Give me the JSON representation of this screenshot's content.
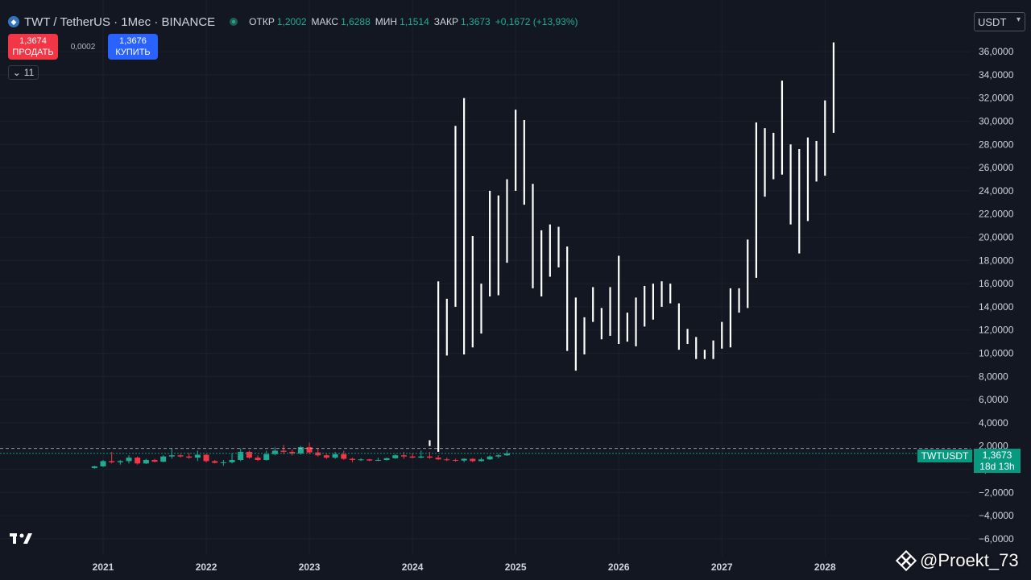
{
  "header": {
    "symbol_icon": "twt-coin-icon",
    "title": "TWT / TetherUS · 1Мес · BINANCE",
    "ohlc": [
      {
        "label": "ОТКР",
        "value": "1,2002"
      },
      {
        "label": "МАКС",
        "value": "1,6288"
      },
      {
        "label": "МИН",
        "value": "1,1514"
      },
      {
        "label": "ЗАКР",
        "value": "1,3673"
      }
    ],
    "change": "+0,1672 (+13,93%)"
  },
  "trade": {
    "sell_price": "1,3674",
    "sell_label": "ПРОДАТЬ",
    "spread": "0,0002",
    "buy_price": "1,3676",
    "buy_label": "КУПИТЬ"
  },
  "indicators_toggle": {
    "count": "11",
    "icon": "chevron-down-icon"
  },
  "currency": {
    "value": "USDT",
    "icon": "chevron-down-icon"
  },
  "price_tag": {
    "symbol": "TWTUSDT",
    "price": "1,3673",
    "countdown": "18d 13h"
  },
  "watermark": {
    "icon": "binance-logo-icon",
    "text": "@Proekt_73"
  },
  "colors": {
    "background": "#131722",
    "up": "#22ab94",
    "down": "#f23645",
    "projection": "#ffffff"
  },
  "chart_data": {
    "type": "candlestick",
    "y_axis": {
      "ticks": [
        -6,
        -4,
        -2,
        0,
        2,
        4,
        6,
        8,
        10,
        12,
        14,
        16,
        18,
        20,
        22,
        24,
        26,
        28,
        30,
        32,
        34,
        36
      ],
      "tick_labels": [
        "−6,0000",
        "−4,0000",
        "−2,0000",
        "0,0000",
        "2,0000",
        "4,0000",
        "6,0000",
        "8,0000",
        "10,0000",
        "12,0000",
        "14,0000",
        "16,0000",
        "18,0000",
        "20,0000",
        "22,0000",
        "24,0000",
        "26,0000",
        "28,0000",
        "30,0000",
        "32,0000",
        "34,0000",
        "36,0000"
      ]
    },
    "x_axis": {
      "ticks": [
        "2021",
        "2022",
        "2023",
        "2024",
        "2025",
        "2026",
        "2027",
        "2028"
      ]
    },
    "price_line": 1.8,
    "last_price": 1.3673,
    "candles": [
      {
        "x": "2020-12",
        "o": 0.1,
        "h": 0.3,
        "l": 0.05,
        "c": 0.25
      },
      {
        "x": "2021-01",
        "o": 0.25,
        "h": 0.8,
        "l": 0.2,
        "c": 0.7
      },
      {
        "x": "2021-02",
        "o": 0.7,
        "h": 1.5,
        "l": 0.5,
        "c": 0.6
      },
      {
        "x": "2021-03",
        "o": 0.6,
        "h": 0.8,
        "l": 0.4,
        "c": 0.7
      },
      {
        "x": "2021-04",
        "o": 0.7,
        "h": 1.2,
        "l": 0.5,
        "c": 1.0
      },
      {
        "x": "2021-05",
        "o": 1.0,
        "h": 1.1,
        "l": 0.4,
        "c": 0.5
      },
      {
        "x": "2021-06",
        "o": 0.5,
        "h": 0.9,
        "l": 0.45,
        "c": 0.8
      },
      {
        "x": "2021-07",
        "o": 0.8,
        "h": 0.9,
        "l": 0.6,
        "c": 0.65
      },
      {
        "x": "2021-08",
        "o": 0.65,
        "h": 1.2,
        "l": 0.6,
        "c": 1.1
      },
      {
        "x": "2021-09",
        "o": 1.1,
        "h": 1.8,
        "l": 0.9,
        "c": 1.2
      },
      {
        "x": "2021-10",
        "o": 1.2,
        "h": 1.3,
        "l": 1.0,
        "c": 1.1
      },
      {
        "x": "2021-11",
        "o": 1.1,
        "h": 1.4,
        "l": 0.9,
        "c": 1.0
      },
      {
        "x": "2021-12",
        "o": 1.0,
        "h": 1.6,
        "l": 0.7,
        "c": 1.25
      },
      {
        "x": "2022-01",
        "o": 1.25,
        "h": 1.3,
        "l": 0.6,
        "c": 0.7
      },
      {
        "x": "2022-02",
        "o": 0.7,
        "h": 0.8,
        "l": 0.5,
        "c": 0.55
      },
      {
        "x": "2022-03",
        "o": 0.55,
        "h": 0.8,
        "l": 0.3,
        "c": 0.6
      },
      {
        "x": "2022-04",
        "o": 0.6,
        "h": 1.4,
        "l": 0.5,
        "c": 0.8
      },
      {
        "x": "2022-05",
        "o": 0.8,
        "h": 1.8,
        "l": 0.7,
        "c": 1.5
      },
      {
        "x": "2022-06",
        "o": 1.5,
        "h": 1.6,
        "l": 0.9,
        "c": 1.0
      },
      {
        "x": "2022-07",
        "o": 1.0,
        "h": 1.2,
        "l": 0.7,
        "c": 0.8
      },
      {
        "x": "2022-08",
        "o": 0.8,
        "h": 1.6,
        "l": 0.75,
        "c": 1.3
      },
      {
        "x": "2022-09",
        "o": 1.3,
        "h": 1.9,
        "l": 1.2,
        "c": 1.6
      },
      {
        "x": "2022-10",
        "o": 1.6,
        "h": 2.1,
        "l": 1.3,
        "c": 1.5
      },
      {
        "x": "2022-11",
        "o": 1.5,
        "h": 1.7,
        "l": 1.2,
        "c": 1.35
      },
      {
        "x": "2022-12",
        "o": 1.35,
        "h": 2.0,
        "l": 1.25,
        "c": 1.9
      },
      {
        "x": "2023-01",
        "o": 1.9,
        "h": 2.3,
        "l": 1.3,
        "c": 1.45
      },
      {
        "x": "2023-02",
        "o": 1.45,
        "h": 1.8,
        "l": 1.1,
        "c": 1.2
      },
      {
        "x": "2023-03",
        "o": 1.2,
        "h": 1.3,
        "l": 0.9,
        "c": 1.0
      },
      {
        "x": "2023-04",
        "o": 1.0,
        "h": 1.5,
        "l": 0.9,
        "c": 1.3
      },
      {
        "x": "2023-05",
        "o": 1.3,
        "h": 1.6,
        "l": 0.8,
        "c": 0.9
      },
      {
        "x": "2023-06",
        "o": 0.9,
        "h": 1.0,
        "l": 0.6,
        "c": 0.8
      },
      {
        "x": "2023-07",
        "o": 0.8,
        "h": 0.95,
        "l": 0.7,
        "c": 0.85
      },
      {
        "x": "2023-08",
        "o": 0.85,
        "h": 0.9,
        "l": 0.7,
        "c": 0.75
      },
      {
        "x": "2023-09",
        "o": 0.75,
        "h": 1.0,
        "l": 0.7,
        "c": 0.8
      },
      {
        "x": "2023-10",
        "o": 0.8,
        "h": 1.0,
        "l": 0.75,
        "c": 0.95
      },
      {
        "x": "2023-11",
        "o": 0.95,
        "h": 1.3,
        "l": 0.9,
        "c": 1.2
      },
      {
        "x": "2023-12",
        "o": 1.2,
        "h": 1.5,
        "l": 0.9,
        "c": 1.1
      },
      {
        "x": "2024-01",
        "o": 1.1,
        "h": 1.4,
        "l": 0.95,
        "c": 1.0
      },
      {
        "x": "2024-02",
        "o": 1.0,
        "h": 1.6,
        "l": 0.95,
        "c": 1.1
      },
      {
        "x": "2024-03",
        "o": 1.1,
        "h": 1.5,
        "l": 0.9,
        "c": 1.0
      },
      {
        "x": "2024-04",
        "o": 1.0,
        "h": 1.2,
        "l": 0.8,
        "c": 0.85
      },
      {
        "x": "2024-05",
        "o": 0.85,
        "h": 1.0,
        "l": 0.7,
        "c": 0.8
      },
      {
        "x": "2024-06",
        "o": 0.8,
        "h": 0.9,
        "l": 0.65,
        "c": 0.75
      },
      {
        "x": "2024-07",
        "o": 0.75,
        "h": 0.95,
        "l": 0.6,
        "c": 0.9
      },
      {
        "x": "2024-08",
        "o": 0.9,
        "h": 0.95,
        "l": 0.6,
        "c": 0.7
      },
      {
        "x": "2024-09",
        "o": 0.7,
        "h": 1.0,
        "l": 0.65,
        "c": 0.85
      },
      {
        "x": "2024-10",
        "o": 0.85,
        "h": 1.2,
        "l": 0.8,
        "c": 1.1
      },
      {
        "x": "2024-11",
        "o": 1.1,
        "h": 1.3,
        "l": 0.95,
        "c": 1.2
      },
      {
        "x": "2024-12",
        "o": 1.2,
        "h": 1.6288,
        "l": 1.1514,
        "c": 1.3673
      }
    ],
    "projection_bars": [
      {
        "x": "2024-03",
        "lo": 2.0,
        "hi": 2.5
      },
      {
        "x": "2024-04",
        "lo": 1.5,
        "hi": 16.2
      },
      {
        "x": "2024-05",
        "lo": 9.8,
        "hi": 14.7
      },
      {
        "x": "2024-06",
        "lo": 14.0,
        "hi": 29.6
      },
      {
        "x": "2024-07",
        "lo": 9.9,
        "hi": 32.0
      },
      {
        "x": "2024-08",
        "lo": 10.5,
        "hi": 20.1
      },
      {
        "x": "2024-09",
        "lo": 11.7,
        "hi": 16.0
      },
      {
        "x": "2024-10",
        "lo": 14.9,
        "hi": 24.0
      },
      {
        "x": "2024-11",
        "lo": 15.0,
        "hi": 23.6
      },
      {
        "x": "2024-12",
        "lo": 17.8,
        "hi": 25.0
      },
      {
        "x": "2025-01",
        "lo": 24.0,
        "hi": 31.0
      },
      {
        "x": "2025-02",
        "lo": 22.8,
        "hi": 30.1
      },
      {
        "x": "2025-03",
        "lo": 15.6,
        "hi": 24.6
      },
      {
        "x": "2025-04",
        "lo": 14.9,
        "hi": 20.6
      },
      {
        "x": "2025-05",
        "lo": 16.6,
        "hi": 21.1
      },
      {
        "x": "2025-06",
        "lo": 17.4,
        "hi": 20.9
      },
      {
        "x": "2025-07",
        "lo": 10.2,
        "hi": 19.2
      },
      {
        "x": "2025-08",
        "lo": 8.5,
        "hi": 14.8
      },
      {
        "x": "2025-09",
        "lo": 9.9,
        "hi": 13.1
      },
      {
        "x": "2025-10",
        "lo": 12.7,
        "hi": 15.7
      },
      {
        "x": "2025-11",
        "lo": 11.2,
        "hi": 13.9
      },
      {
        "x": "2025-12",
        "lo": 11.5,
        "hi": 15.7
      },
      {
        "x": "2026-01",
        "lo": 10.8,
        "hi": 18.4
      },
      {
        "x": "2026-02",
        "lo": 11.0,
        "hi": 13.5
      },
      {
        "x": "2026-03",
        "lo": 10.6,
        "hi": 14.8
      },
      {
        "x": "2026-04",
        "lo": 12.3,
        "hi": 15.8
      },
      {
        "x": "2026-05",
        "lo": 12.9,
        "hi": 16.0
      },
      {
        "x": "2026-06",
        "lo": 14.0,
        "hi": 16.2
      },
      {
        "x": "2026-07",
        "lo": 14.3,
        "hi": 16.0
      },
      {
        "x": "2026-08",
        "lo": 10.3,
        "hi": 14.3
      },
      {
        "x": "2026-09",
        "lo": 10.8,
        "hi": 12.1
      },
      {
        "x": "2026-10",
        "lo": 9.5,
        "hi": 11.4
      },
      {
        "x": "2026-11",
        "lo": 9.5,
        "hi": 10.3
      },
      {
        "x": "2026-12",
        "lo": 9.5,
        "hi": 11.1
      },
      {
        "x": "2027-01",
        "lo": 10.4,
        "hi": 12.7
      },
      {
        "x": "2027-02",
        "lo": 10.5,
        "hi": 15.6
      },
      {
        "x": "2027-03",
        "lo": 13.5,
        "hi": 15.6
      },
      {
        "x": "2027-04",
        "lo": 13.9,
        "hi": 19.8
      },
      {
        "x": "2027-05",
        "lo": 16.5,
        "hi": 29.9
      },
      {
        "x": "2027-06",
        "lo": 23.5,
        "hi": 29.4
      },
      {
        "x": "2027-07",
        "lo": 25.0,
        "hi": 29.0
      },
      {
        "x": "2027-08",
        "lo": 25.4,
        "hi": 33.5
      },
      {
        "x": "2027-09",
        "lo": 21.1,
        "hi": 28.0
      },
      {
        "x": "2027-10",
        "lo": 18.6,
        "hi": 27.6
      },
      {
        "x": "2027-11",
        "lo": 21.4,
        "hi": 28.6
      },
      {
        "x": "2027-12",
        "lo": 24.8,
        "hi": 28.3
      },
      {
        "x": "2028-01",
        "lo": 25.3,
        "hi": 31.8
      },
      {
        "x": "2028-02",
        "lo": 29.0,
        "hi": 36.8
      }
    ]
  }
}
